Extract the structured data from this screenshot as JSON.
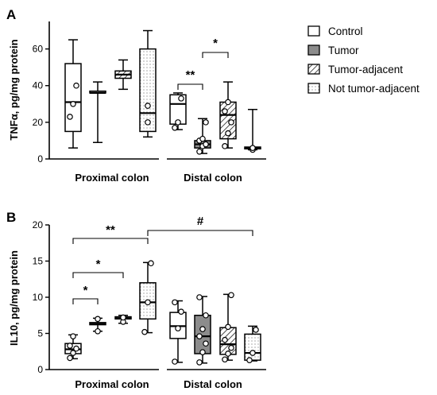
{
  "chart_data": [
    {
      "panel": "A",
      "type": "box",
      "ylabel": "TNFα, pg/mg protein",
      "ylim": [
        0,
        75
      ],
      "yticks": [
        "0",
        "20",
        "40",
        "60"
      ],
      "groups": [
        "Proximal colon",
        "Distal colon"
      ],
      "series": [
        {
          "name": "Control",
          "group": "Proximal colon",
          "min": 6,
          "q1": 15,
          "median": 31,
          "q3": 52,
          "max": 65,
          "points": [
            23,
            30,
            40
          ]
        },
        {
          "name": "Tumor",
          "group": "Proximal colon",
          "min": 9,
          "q1": 36,
          "median": 36,
          "q3": 37,
          "max": 42,
          "points": []
        },
        {
          "name": "Tumor-adjacent",
          "group": "Proximal colon",
          "min": 38,
          "q1": 44,
          "median": 46,
          "q3": 48,
          "max": 54,
          "points": []
        },
        {
          "name": "Not tumor-adjacent",
          "group": "Proximal colon",
          "min": 12,
          "q1": 15,
          "median": 25,
          "q3": 60,
          "max": 70,
          "points": [
            20,
            29
          ]
        },
        {
          "name": "Control",
          "group": "Distal colon",
          "min": 16,
          "q1": 19,
          "median": 30,
          "q3": 35,
          "max": 36,
          "points": [
            17,
            20,
            33
          ]
        },
        {
          "name": "Tumor",
          "group": "Distal colon",
          "min": 3,
          "q1": 6,
          "median": 8,
          "q3": 10,
          "max": 22,
          "points": [
            4,
            7,
            8,
            10,
            11,
            20
          ]
        },
        {
          "name": "Tumor-adjacent",
          "group": "Distal colon",
          "min": 6,
          "q1": 11,
          "median": 24,
          "q3": 31,
          "max": 42,
          "points": [
            7,
            14,
            20,
            26,
            31
          ]
        },
        {
          "name": "Not tumor-adjacent",
          "group": "Distal colon",
          "min": 5,
          "q1": 5.5,
          "median": 6,
          "q3": 6.5,
          "max": 27,
          "points": [
            5,
            6
          ]
        }
      ],
      "significance": [
        {
          "label": "**",
          "from": 0,
          "to": 1,
          "group": "Distal colon"
        },
        {
          "label": "*",
          "from": 1,
          "to": 2,
          "group": "Distal colon"
        }
      ]
    },
    {
      "panel": "B",
      "type": "box",
      "ylabel": "IL10, pg/mg protein",
      "ylim": [
        0,
        20
      ],
      "yticks": [
        "0",
        "5",
        "10",
        "15",
        "20"
      ],
      "groups": [
        "Proximal colon",
        "Distal colon"
      ],
      "series": [
        {
          "name": "Control",
          "group": "Proximal colon",
          "min": 1.5,
          "q1": 2.2,
          "median": 2.8,
          "q3": 3.6,
          "max": 4.8,
          "points": [
            1.6,
            2.3,
            2.9,
            3.3,
            4.6
          ]
        },
        {
          "name": "Tumor",
          "group": "Proximal colon",
          "min": 5.3,
          "q1": 6.2,
          "median": 6.3,
          "q3": 6.5,
          "max": 7.1,
          "points": [
            5.3,
            7.0
          ]
        },
        {
          "name": "Tumor-adjacent",
          "group": "Proximal colon",
          "min": 6.4,
          "q1": 7.0,
          "median": 7.1,
          "q3": 7.3,
          "max": 7.5,
          "points": [
            6.6,
            7.2
          ]
        },
        {
          "name": "Not tumor-adjacent",
          "group": "Proximal colon",
          "min": 5.1,
          "q1": 7.0,
          "median": 9.3,
          "q3": 12.0,
          "max": 14.8,
          "points": [
            5.2,
            9.3,
            14.7
          ]
        },
        {
          "name": "Control",
          "group": "Distal colon",
          "min": 1.0,
          "q1": 4.3,
          "median": 6.0,
          "q3": 7.9,
          "max": 9.5,
          "points": [
            1.1,
            5.7,
            8.0,
            9.3
          ]
        },
        {
          "name": "Tumor",
          "group": "Distal colon",
          "min": 0.9,
          "q1": 2.2,
          "median": 4.6,
          "q3": 7.5,
          "max": 10.1,
          "points": [
            1.0,
            2.4,
            3.6,
            4.6,
            5.6,
            7.5,
            10.0
          ]
        },
        {
          "name": "Tumor-adjacent",
          "group": "Distal colon",
          "min": 1.3,
          "q1": 2.1,
          "median": 3.5,
          "q3": 5.8,
          "max": 10.4,
          "points": [
            1.4,
            2.2,
            3.0,
            4.1,
            5.9,
            10.3
          ]
        },
        {
          "name": "Not tumor-adjacent",
          "group": "Distal colon",
          "min": 1.2,
          "q1": 1.3,
          "median": 2.3,
          "q3": 4.9,
          "max": 6.0,
          "points": [
            1.3,
            2.3,
            5.5
          ]
        }
      ],
      "significance": [
        {
          "label": "*",
          "from": 0,
          "to": 1,
          "group": "Proximal colon"
        },
        {
          "label": "*",
          "from": 0,
          "to": 2,
          "group": "Proximal colon"
        },
        {
          "label": "**",
          "from": 0,
          "to": 3,
          "group": "Proximal colon"
        },
        {
          "label": "#",
          "from": "Proximal colon:3",
          "to": "Distal colon:3"
        }
      ]
    }
  ],
  "legend": {
    "placement": "top-right",
    "items": [
      {
        "label": "Control",
        "fill": "white"
      },
      {
        "label": "Tumor",
        "fill": "gray"
      },
      {
        "label": "Tumor-adjacent",
        "fill": "hatch"
      },
      {
        "label": "Not tumor-adjacent",
        "fill": "dots"
      }
    ]
  },
  "colors": {
    "tumor_fill": "#8c8c8c",
    "line": "#000000",
    "background": "#ffffff"
  }
}
